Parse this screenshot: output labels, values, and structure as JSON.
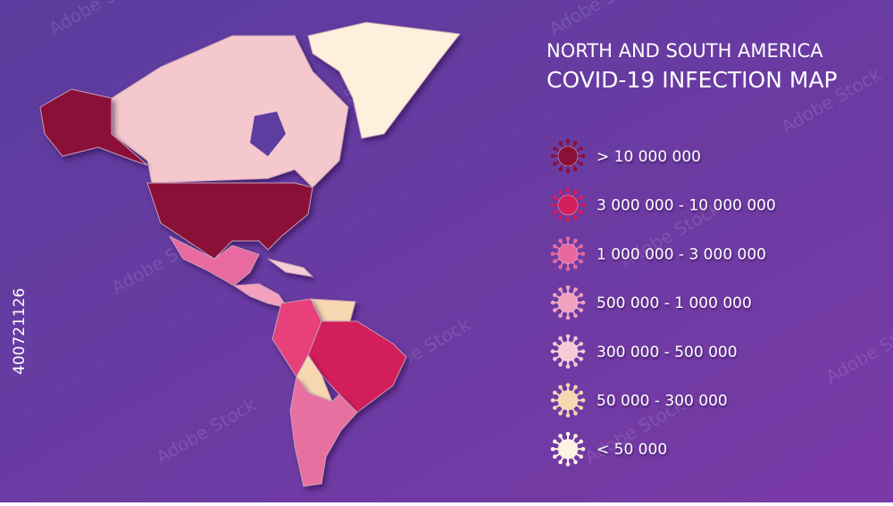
{
  "header": {
    "title_line1": "NORTH AND SOUTH AMERICA",
    "title_line2": "COVID-19 INFECTION MAP"
  },
  "legend": {
    "items": [
      {
        "label": "> 10 000 000",
        "color": "#8b1038"
      },
      {
        "label": "3 000 000 - 10 000 000",
        "color": "#d21e5a"
      },
      {
        "label": "1 000 000 - 3 000 000",
        "color": "#e8689e"
      },
      {
        "label": "500 000 - 1 000 000",
        "color": "#f2a2bf"
      },
      {
        "label": "300 000 - 500 000",
        "color": "#f6cbd6"
      },
      {
        "label": "50 000 - 300 000",
        "color": "#f7d8b0"
      },
      {
        "label": "< 50 000",
        "color": "#fdf3e2"
      }
    ]
  },
  "watermark": {
    "id": "400721126",
    "text": "Adobe Stock"
  }
}
